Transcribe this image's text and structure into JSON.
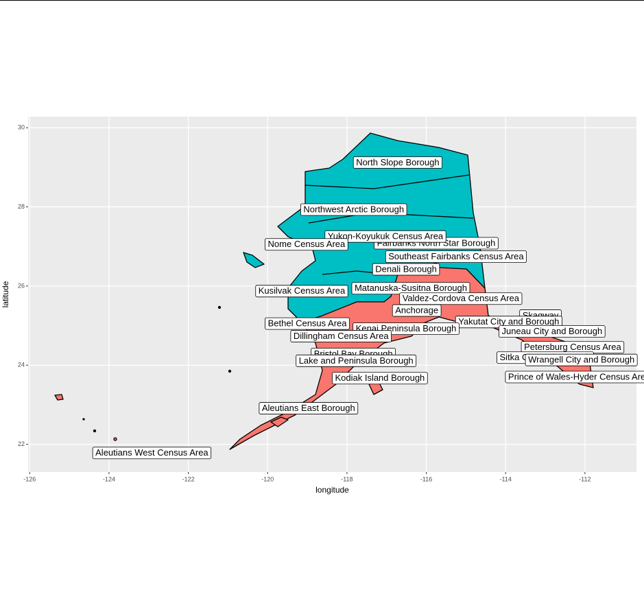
{
  "chart_data": {
    "type": "map",
    "x_label": "longitude",
    "y_label": "latitude",
    "xlim": [
      -126.04,
      -110.7
    ],
    "ylim": [
      21.3,
      30.28
    ],
    "xticks": [
      -126,
      -124,
      -122,
      -120,
      -118,
      -116,
      -114,
      -112
    ],
    "yticks": [
      22,
      24,
      26,
      28,
      30
    ],
    "grid": true,
    "colors": [
      "#00BFC4",
      "#F8766D"
    ],
    "labels": [
      {
        "text": "North Slope Borough",
        "x": -116.72,
        "y": 29.13
      },
      {
        "text": "Northwest Arctic Borough",
        "x": -117.83,
        "y": 27.94
      },
      {
        "text": "Fairbanks North Star Borough",
        "x": -115.75,
        "y": 27.09
      },
      {
        "text": "Yukon-Koyukuk Census Area",
        "x": -117.03,
        "y": 27.26
      },
      {
        "text": "Nome Census Area",
        "x": -119.02,
        "y": 27.06
      },
      {
        "text": "Southeast Fairbanks Census Area",
        "x": -115.25,
        "y": 26.75
      },
      {
        "text": "Denali Borough",
        "x": -116.51,
        "y": 26.43
      },
      {
        "text": "Kusilvak Census Area",
        "x": -119.14,
        "y": 25.88
      },
      {
        "text": "Matanuska-Susitna Borough",
        "x": -116.39,
        "y": 25.95
      },
      {
        "text": "Valdez-Cordova Census Area",
        "x": -115.13,
        "y": 25.69
      },
      {
        "text": "Anchorage",
        "x": -116.24,
        "y": 25.39
      },
      {
        "text": "Skagway",
        "x": -113.12,
        "y": 25.26
      },
      {
        "text": "Bethel Census Area",
        "x": -119.0,
        "y": 25.06
      },
      {
        "text": "Yakutat City and Borough",
        "x": -113.92,
        "y": 25.1
      },
      {
        "text": "Kenai Peninsula Borough",
        "x": -116.51,
        "y": 24.93
      },
      {
        "text": "Juneau City and Borough",
        "x": -112.83,
        "y": 24.86
      },
      {
        "text": "Dillingham Census Area",
        "x": -118.15,
        "y": 24.74
      },
      {
        "text": "Petersburg Census Area",
        "x": -112.31,
        "y": 24.46
      },
      {
        "text": "Bristol Bay Borough",
        "x": -117.84,
        "y": 24.29
      },
      {
        "text": "Sitka City and Borough",
        "x": -113.0,
        "y": 24.2
      },
      {
        "text": "Lake and Peninsula Borough",
        "x": -117.77,
        "y": 24.12
      },
      {
        "text": "Wrangell City and Borough",
        "x": -112.09,
        "y": 24.14
      },
      {
        "text": "Prince of Wales-Hyder Census Area",
        "x": -112.14,
        "y": 23.71
      },
      {
        "text": "Kodiak Island Borough",
        "x": -117.17,
        "y": 23.68
      },
      {
        "text": "Aleutians East Borough",
        "x": -118.97,
        "y": 22.92
      },
      {
        "text": "Aleutians West Census Area",
        "x": -122.92,
        "y": 21.79
      }
    ]
  }
}
